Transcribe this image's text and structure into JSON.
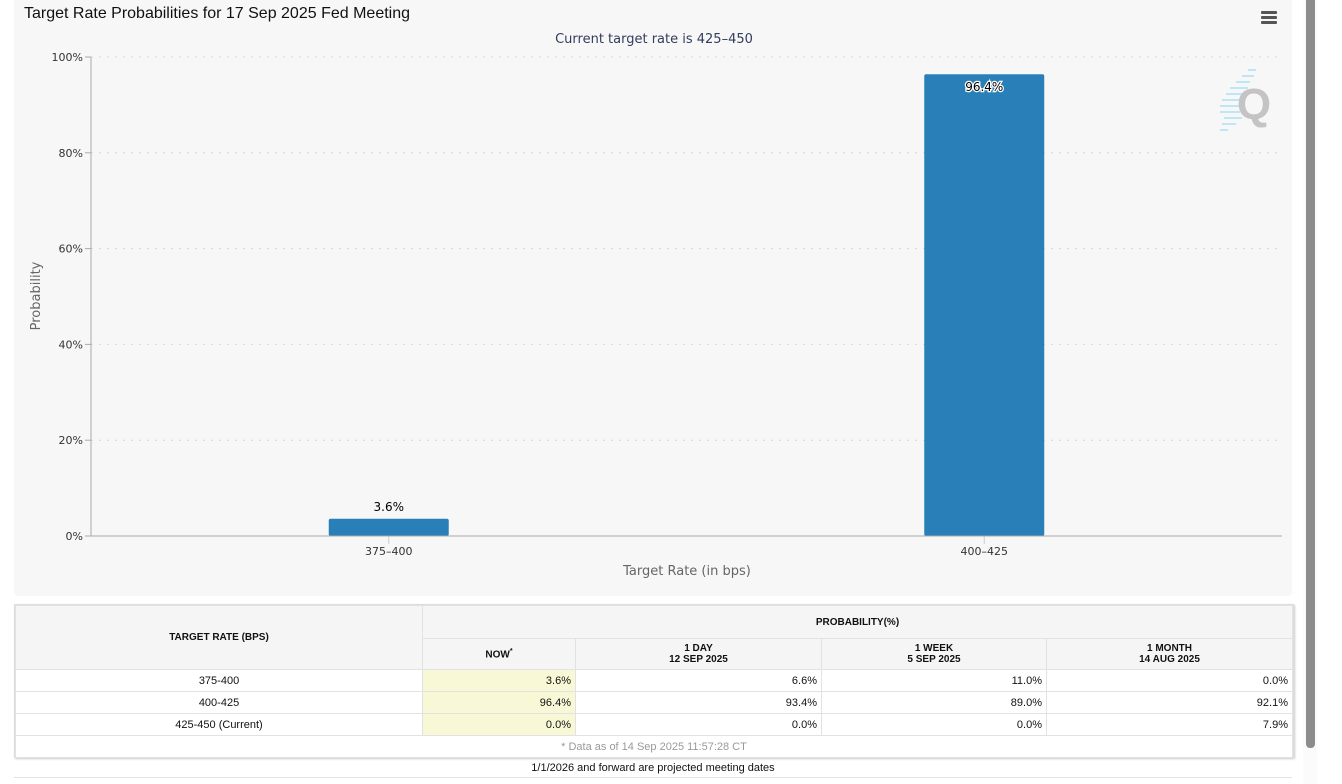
{
  "chart": {
    "title": "Target Rate Probabilities for 17 Sep 2025 Fed Meeting",
    "menu_icon": "hamburger-menu-icon",
    "watermark": "Q"
  },
  "chart_data": {
    "type": "bar",
    "title": "Target Rate Probabilities for 17 Sep 2025 Fed Meeting",
    "subtitle": "Current target rate is 425–450",
    "xlabel": "Target Rate (in bps)",
    "ylabel": "Probability",
    "categories": [
      "375–400",
      "400–425"
    ],
    "values": [
      3.6,
      96.4
    ],
    "data_labels": [
      "3.6%",
      "96.4%"
    ],
    "ylim": [
      0,
      100
    ],
    "yticks": [
      0,
      20,
      40,
      60,
      80,
      100
    ],
    "ytick_labels": [
      "0%",
      "20%",
      "40%",
      "60%",
      "80%",
      "100%"
    ],
    "grid": true,
    "bar_color": "#2980b9"
  },
  "table": {
    "rate_header": "TARGET RATE (BPS)",
    "prob_header": "PROBABILITY(%)",
    "columns": [
      {
        "line1": "NOW",
        "line2": "",
        "marker": "*"
      },
      {
        "line1": "1 DAY",
        "line2": "12 SEP 2025",
        "marker": ""
      },
      {
        "line1": "1 WEEK",
        "line2": "5 SEP 2025",
        "marker": ""
      },
      {
        "line1": "1 MONTH",
        "line2": "14 AUG 2025",
        "marker": ""
      }
    ],
    "rows": [
      {
        "rate": "375-400",
        "values": [
          "3.6%",
          "6.6%",
          "11.0%",
          "0.0%"
        ]
      },
      {
        "rate": "400-425",
        "values": [
          "96.4%",
          "93.4%",
          "89.0%",
          "92.1%"
        ]
      },
      {
        "rate": "425-450 (Current)",
        "values": [
          "0.0%",
          "0.0%",
          "0.0%",
          "7.9%"
        ]
      }
    ],
    "data_note": "* Data as of 14 Sep 2025 11:57:28 CT"
  },
  "footer_note": "1/1/2026 and forward are projected meeting dates"
}
